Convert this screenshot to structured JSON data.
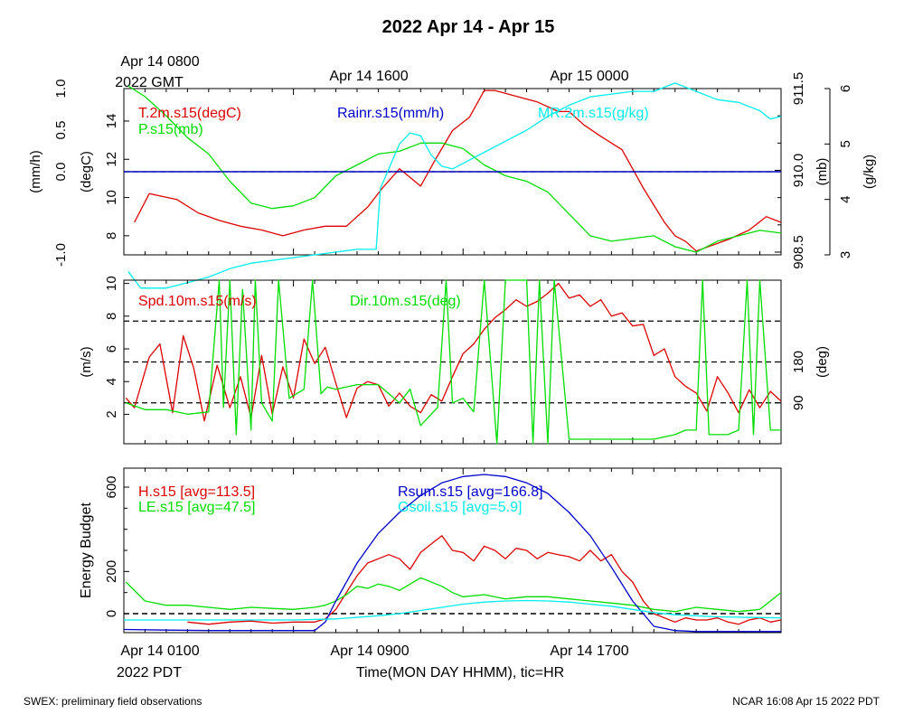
{
  "page": {
    "title": "2022 Apr 14 - Apr 15",
    "top_axis": {
      "labels": [
        "Apr 14 0800",
        "Apr 14 1600",
        "Apr 15 0000"
      ],
      "sublabel": "2022 GMT"
    },
    "bottom_axis": {
      "labels": [
        "Apr 14 0100",
        "Apr 14 0900",
        "Apr 14 1700"
      ],
      "sublabel": "2022 PDT",
      "xlabel": "Time(MON DAY HHMM), tic=HR"
    },
    "footer_left": "SWEX: preliminary field observations",
    "footer_right": "NCAR 16:08 Apr 15 2022 PDT",
    "colors": {
      "red": "#dd0000",
      "green": "#00dd00",
      "blue": "#0000cc",
      "cyan": "#00eeee",
      "black": "#000000"
    }
  },
  "chart_data": [
    {
      "type": "line",
      "panel": "top",
      "x_unit": "hours since Apr 14 0100 PDT",
      "xlim": [
        0,
        31
      ],
      "legend": [
        "T.2m.s15(degC)",
        "P.s15(mb)",
        "Rainr.s15(mm/h)",
        "MR.2m.s15(g/kg)"
      ],
      "axes": {
        "rain": {
          "label": "(mm/h)",
          "lim": [
            -1.0,
            1.0
          ],
          "ticks": [
            -1.0,
            0.0,
            0.5,
            1.0
          ],
          "tick_labels": [
            "-1.0",
            "0.0",
            "0.5",
            "1.0"
          ]
        },
        "temp": {
          "label": "(degC)",
          "lim": [
            7,
            15.7
          ],
          "ticks": [
            8,
            10,
            12,
            14
          ],
          "tick_labels": [
            "8",
            "10",
            "12",
            "14"
          ]
        },
        "pres": {
          "label": "(mb)",
          "lim": [
            908.45,
            911.5
          ],
          "ticks": [
            908.5,
            910.0,
            911.5
          ],
          "tick_labels": [
            "908.5",
            "910.0",
            "911.5"
          ],
          "minor_ticks": [
            909.0,
            909.5,
            910.5,
            911.0
          ]
        },
        "mr": {
          "label": "(g/kg)",
          "lim": [
            3.0,
            6.0
          ],
          "ticks": [
            3,
            4,
            5,
            6
          ],
          "tick_labels": [
            "3",
            "4",
            "5",
            "6"
          ]
        }
      },
      "series": [
        {
          "name": "T.2m.s15(degC)",
          "axis": "temp",
          "color": "#dd0000",
          "x": [
            0.5,
            1.2,
            2.5,
            3.5,
            4.5,
            5.5,
            6.5,
            7.5,
            8.5,
            9.5,
            10.5,
            11.5,
            12.2,
            13.0,
            14.0,
            14.7,
            15.5,
            16.3,
            17.0,
            17.5,
            18.5,
            19.5,
            20.5,
            21.0,
            21.7,
            22.5,
            23.5,
            24.5,
            25.5,
            26.0,
            26.5,
            27.0,
            27.5,
            28.5,
            29.5,
            30.3,
            31.0
          ],
          "y": [
            8.7,
            10.2,
            9.9,
            9.2,
            8.8,
            8.5,
            8.3,
            8.0,
            8.3,
            8.5,
            8.5,
            9.5,
            10.5,
            11.5,
            10.6,
            12.0,
            13.5,
            14.2,
            15.6,
            15.6,
            15.3,
            15.0,
            14.5,
            14.5,
            13.8,
            13.2,
            12.5,
            10.5,
            8.7,
            8.0,
            7.7,
            7.2,
            7.4,
            7.8,
            8.3,
            9.0,
            8.7
          ]
        },
        {
          "name": "P.s15(mb)",
          "axis": "pres",
          "color": "#00dd00",
          "x": [
            0.2,
            1.0,
            2.0,
            3.0,
            4.0,
            5.0,
            6.0,
            7.0,
            8.0,
            9.0,
            10.0,
            11.0,
            12.0,
            13.0,
            14.0,
            15.0,
            16.0,
            17.0,
            18.0,
            19.0,
            20.0,
            21.0,
            22.0,
            23.0,
            24.0,
            25.0,
            26.0,
            27.0,
            28.0,
            29.0,
            30.0,
            31.0
          ],
          "y": [
            911.55,
            911.35,
            911.0,
            910.6,
            910.3,
            909.8,
            909.4,
            909.3,
            909.35,
            909.5,
            909.9,
            910.1,
            910.3,
            910.35,
            910.5,
            910.5,
            910.4,
            910.1,
            909.9,
            909.8,
            909.6,
            909.2,
            908.8,
            908.7,
            908.75,
            908.8,
            908.6,
            908.5,
            908.7,
            908.8,
            908.9,
            908.85
          ]
        },
        {
          "name": "Rainr.s15(mm/h)",
          "axis": "rain",
          "color": "#0000cc",
          "x": [
            0,
            31
          ],
          "y": [
            0.0,
            0.0
          ]
        },
        {
          "name": "MR.2m.s15(g/kg)",
          "axis": "mr",
          "color": "#00eeee",
          "x": [
            0.2,
            0.8,
            2.0,
            3.0,
            4.0,
            5.0,
            6.0,
            7.0,
            8.0,
            9.0,
            10.0,
            11.0,
            11.9,
            12.1,
            13.0,
            13.5,
            14.0,
            14.5,
            15.0,
            15.5,
            16.0,
            17.0,
            18.0,
            19.0,
            20.0,
            21.0,
            22.0,
            23.0,
            24.0,
            25.0,
            26.0,
            27.0,
            28.0,
            29.0,
            30.0,
            30.5,
            31.0
          ],
          "y": [
            2.7,
            2.4,
            2.4,
            2.5,
            2.6,
            2.75,
            2.85,
            2.9,
            2.95,
            3.0,
            3.05,
            3.1,
            3.1,
            4.2,
            5.0,
            5.2,
            5.15,
            4.8,
            4.6,
            4.55,
            4.65,
            4.85,
            5.05,
            5.25,
            5.5,
            5.7,
            5.85,
            5.9,
            5.95,
            5.95,
            6.1,
            5.95,
            5.8,
            5.75,
            5.6,
            5.45,
            5.5
          ]
        }
      ]
    },
    {
      "type": "line",
      "panel": "middle",
      "x_unit": "hours since Apr 14 0100 PDT",
      "xlim": [
        0,
        31
      ],
      "legend": [
        "Spd.10m.s15(m/s)",
        "Dir.10m.s15(deg)"
      ],
      "axes": {
        "spd": {
          "label": "(m/s)",
          "lim": [
            0.2,
            10.2
          ],
          "ticks": [
            2,
            4,
            6,
            8,
            10
          ],
          "tick_labels": [
            "2",
            "4",
            "6",
            "8",
            "10"
          ]
        },
        "dir": {
          "label": "(deg)",
          "lim": [
            0,
            360
          ],
          "ticks": [
            90,
            180
          ],
          "tick_labels": [
            "90",
            "180"
          ]
        }
      },
      "dashed_levels_dir": [
        90,
        180,
        270
      ],
      "series": [
        {
          "name": "Spd.10m.s15(m/s)",
          "axis": "spd",
          "color": "#dd0000",
          "x": [
            0.1,
            0.5,
            1.2,
            1.7,
            2.3,
            2.8,
            3.3,
            3.8,
            4.4,
            5.0,
            5.5,
            6.0,
            6.5,
            7.0,
            7.5,
            8.0,
            8.5,
            9.0,
            9.5,
            10.0,
            10.5,
            11.0,
            11.5,
            12.0,
            12.5,
            13.0,
            13.5,
            14.0,
            14.5,
            15.0,
            15.5,
            16.0,
            16.5,
            17.0,
            17.5,
            18.0,
            18.5,
            19.0,
            19.5,
            20.0,
            20.5,
            21.0,
            21.5,
            22.0,
            22.5,
            23.0,
            23.5,
            24.0,
            24.5,
            25.0,
            25.5,
            26.0,
            26.5,
            27.0,
            27.5,
            28.0,
            28.5,
            29.0,
            29.5,
            30.0,
            30.5,
            31.0
          ],
          "y": [
            3.0,
            2.4,
            5.5,
            6.3,
            2.1,
            6.8,
            4.8,
            1.6,
            5.0,
            2.4,
            4.3,
            1.8,
            5.6,
            2.0,
            4.9,
            3.0,
            6.6,
            5.1,
            6.1,
            3.9,
            1.8,
            3.6,
            4.0,
            3.8,
            2.5,
            3.3,
            2.5,
            2.1,
            3.2,
            2.8,
            4.3,
            5.7,
            6.3,
            7.2,
            7.9,
            8.4,
            9.0,
            8.6,
            8.9,
            9.4,
            10.0,
            9.1,
            9.3,
            8.6,
            9.0,
            8.0,
            8.2,
            7.4,
            7.5,
            5.6,
            6.0,
            4.3,
            3.7,
            3.3,
            2.2,
            4.3,
            3.3,
            2.1,
            3.5,
            2.4,
            3.4,
            2.8
          ]
        },
        {
          "name": "Dir.10m.s15(deg)",
          "axis": "dir",
          "color": "#00dd00",
          "x": [
            0.1,
            1.0,
            2.0,
            3.0,
            4.0,
            4.5,
            4.7,
            5.0,
            5.3,
            5.6,
            6.0,
            6.2,
            6.5,
            7.0,
            7.3,
            7.8,
            8.5,
            8.9,
            9.3,
            9.6,
            10.0,
            11.0,
            12.0,
            13.0,
            13.5,
            14.0,
            14.8,
            15.2,
            15.5,
            16.0,
            16.5,
            17.0,
            17.6,
            18.0,
            19.0,
            19.3,
            19.6,
            20.0,
            20.3,
            21.0,
            21.5,
            22.0,
            22.5,
            23.0,
            24.0,
            25.0,
            26.0,
            26.5,
            27.0,
            27.3,
            27.6,
            28.0,
            28.5,
            29.0,
            29.4,
            29.7,
            30.0,
            30.5,
            31.0
          ],
          "y": [
            90,
            75,
            75,
            65,
            70,
            360,
            80,
            360,
            20,
            340,
            30,
            360,
            90,
            50,
            360,
            100,
            120,
            360,
            110,
            125,
            120,
            130,
            130,
            90,
            120,
            40,
            80,
            360,
            90,
            100,
            70,
            360,
            0,
            360,
            360,
            0,
            360,
            0,
            360,
            10,
            10,
            10,
            10,
            10,
            10,
            10,
            20,
            30,
            30,
            360,
            20,
            20,
            20,
            30,
            360,
            20,
            360,
            30,
            30
          ]
        }
      ]
    },
    {
      "type": "line",
      "panel": "bottom",
      "x_unit": "hours since Apr 14 0100 PDT",
      "xlim": [
        0,
        31
      ],
      "ylabel": "Energy Budget",
      "ylim": [
        -90,
        690
      ],
      "yticks": [
        0,
        200,
        600
      ],
      "ytick_labels": [
        "0",
        "200",
        "600"
      ],
      "dashed_level": 0,
      "legend": [
        "H.s15 [avg=113.5]",
        "LE.s15 [avg=47.5]",
        "Rsum.s15 [avg=166.8]",
        "Gsoil.s15 [avg=5.9]"
      ],
      "series": [
        {
          "name": "H.s15 [avg=113.5]",
          "color": "#dd0000",
          "x": [
            3.0,
            4.0,
            5.0,
            6.0,
            7.0,
            8.0,
            9.0,
            9.5,
            10.0,
            10.5,
            11.0,
            11.5,
            12.0,
            12.5,
            13.0,
            13.5,
            14.0,
            14.5,
            15.0,
            15.5,
            16.0,
            16.5,
            17.0,
            17.5,
            18.0,
            18.5,
            19.0,
            19.5,
            20.0,
            20.5,
            21.0,
            21.5,
            22.0,
            22.5,
            23.0,
            23.5,
            24.0,
            24.5,
            25.0,
            25.5,
            26.0,
            26.5,
            27.0,
            27.5,
            28.0,
            28.5,
            29.0,
            29.5,
            30.0,
            30.5,
            31.0
          ],
          "y": [
            -40,
            -50,
            -40,
            -35,
            -45,
            -40,
            -40,
            -25,
            20,
            100,
            180,
            240,
            260,
            280,
            260,
            210,
            290,
            330,
            370,
            300,
            290,
            250,
            320,
            300,
            260,
            310,
            300,
            260,
            290,
            280,
            270,
            250,
            300,
            250,
            280,
            200,
            150,
            60,
            0,
            -20,
            -40,
            -20,
            -30,
            -30,
            -20,
            -40,
            -50,
            -30,
            -20,
            -40,
            -30
          ]
        },
        {
          "name": "LE.s15 [avg=47.5]",
          "color": "#00dd00",
          "x": [
            0.1,
            1.0,
            2.0,
            3.0,
            4.0,
            5.0,
            6.0,
            7.0,
            8.0,
            9.0,
            9.5,
            10.0,
            10.5,
            11.0,
            11.5,
            12.0,
            12.5,
            13.0,
            13.5,
            14.0,
            14.5,
            15.0,
            15.5,
            16.0,
            17.0,
            18.0,
            19.0,
            20.0,
            21.0,
            22.0,
            23.0,
            24.0,
            25.0,
            26.0,
            27.0,
            28.0,
            29.0,
            30.0,
            31.0
          ],
          "y": [
            150,
            60,
            40,
            40,
            30,
            20,
            30,
            25,
            20,
            30,
            40,
            60,
            90,
            130,
            120,
            140,
            130,
            110,
            140,
            170,
            150,
            130,
            100,
            80,
            90,
            70,
            80,
            80,
            70,
            60,
            50,
            40,
            20,
            10,
            30,
            20,
            10,
            20,
            100
          ]
        },
        {
          "name": "Rsum.s15 [avg=166.8]",
          "color": "#0000cc",
          "x": [
            0,
            2.0,
            4.0,
            6.0,
            8.0,
            9.0,
            9.5,
            10.0,
            11.0,
            12.0,
            13.0,
            14.0,
            15.0,
            16.0,
            17.0,
            18.0,
            19.0,
            20.0,
            21.0,
            22.0,
            23.0,
            24.0,
            25.0,
            26.0,
            27.0,
            28.0,
            29.0,
            30.0,
            31.0
          ],
          "y": [
            -75,
            -78,
            -80,
            -80,
            -80,
            -80,
            -40,
            60,
            240,
            380,
            480,
            560,
            620,
            650,
            660,
            650,
            620,
            570,
            480,
            370,
            220,
            60,
            -60,
            -80,
            -85,
            -85,
            -85,
            -85,
            -85
          ]
        },
        {
          "name": "Gsoil.s15 [avg=5.9]",
          "color": "#00eeee",
          "x": [
            0,
            4.0,
            8.0,
            10.0,
            12.0,
            13.0,
            14.0,
            15.0,
            16.0,
            17.0,
            18.0,
            19.0,
            20.0,
            21.0,
            22.0,
            23.0,
            24.0,
            25.0,
            26.0,
            28.0,
            31.0
          ],
          "y": [
            -30,
            -30,
            -30,
            -25,
            -10,
            0,
            15,
            30,
            45,
            55,
            60,
            62,
            60,
            55,
            45,
            35,
            20,
            5,
            -5,
            -15,
            -20
          ]
        }
      ]
    }
  ]
}
